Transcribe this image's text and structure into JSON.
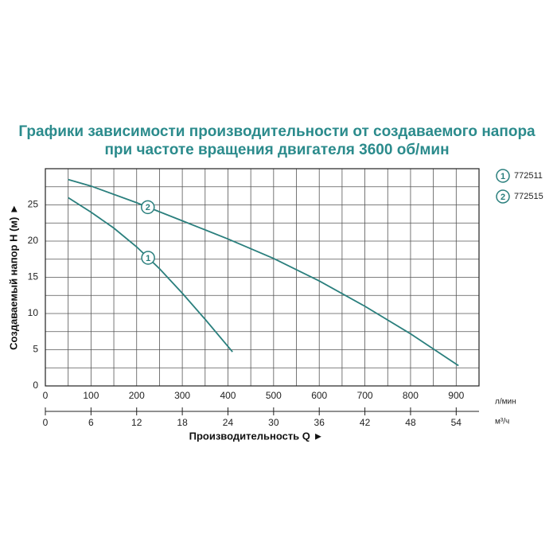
{
  "chart_data": {
    "type": "line",
    "title": [
      "Графики зависимости производительности от создаваемого напора",
      "при частоте вращения двигателя 3600 об/мин"
    ],
    "xlabel": "Производительность Q ►",
    "ylabel": "Создаваемый напор H (м) ►",
    "xunit": "л/мин",
    "x2unit": "м³/ч",
    "xlim": [
      0,
      950
    ],
    "xticks": [
      0,
      100,
      200,
      300,
      400,
      500,
      600,
      700,
      800,
      900
    ],
    "xminor": [
      50,
      150,
      250,
      350,
      450,
      550,
      650,
      750,
      850
    ],
    "x2lim": [
      0,
      57
    ],
    "x2ticks": [
      0,
      6,
      12,
      18,
      24,
      30,
      36,
      42,
      48,
      54
    ],
    "ylim": [
      0,
      30
    ],
    "yticks": [
      0,
      5,
      10,
      15,
      20,
      25
    ],
    "yminor": [
      2.5,
      7.5,
      12.5,
      17.5,
      22.5,
      27.5
    ],
    "grid": true,
    "series": [
      {
        "name": "772511",
        "label": "1",
        "color": "#2a7f7d",
        "x": [
          50,
          100,
          150,
          200,
          250,
          300,
          350,
          410
        ],
        "values": [
          26,
          24,
          21.8,
          19.2,
          16.2,
          12.8,
          9.2,
          4.7
        ]
      },
      {
        "name": "772515",
        "label": "2",
        "color": "#2a7f7d",
        "x": [
          50,
          100,
          200,
          300,
          400,
          500,
          600,
          700,
          800,
          905
        ],
        "values": [
          28.5,
          27.6,
          25.3,
          22.8,
          20.3,
          17.6,
          14.5,
          11,
          7.2,
          2.8
        ]
      }
    ]
  }
}
